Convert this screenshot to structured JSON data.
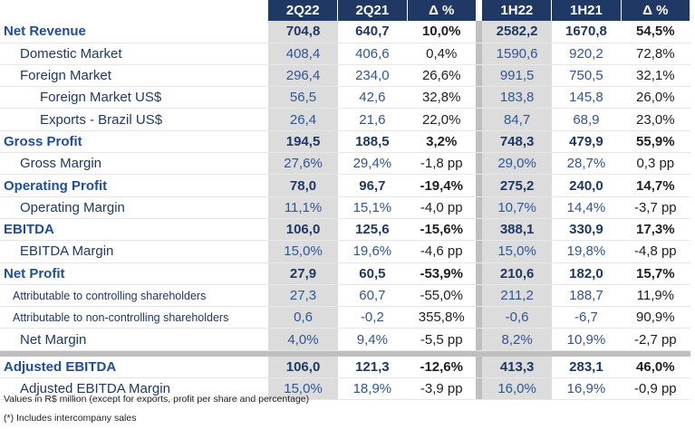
{
  "headers": {
    "c1": "2Q22",
    "c2": "2Q21",
    "c3": "Δ %",
    "c4": "1H22",
    "c5": "1H21",
    "c6": "Δ %"
  },
  "rows": [
    {
      "label": "Net Revenue",
      "v": [
        "704,8",
        "640,7",
        "10,0%",
        "2582,2",
        "1670,8",
        "54,5%"
      ]
    },
    {
      "label": "Domestic Market",
      "v": [
        "408,4",
        "406,6",
        "0,4%",
        "1590,6",
        "920,2",
        "72,8%"
      ]
    },
    {
      "label": "Foreign Market",
      "v": [
        "296,4",
        "234,0",
        "26,6%",
        "991,5",
        "750,5",
        "32,1%"
      ]
    },
    {
      "label": "Foreign Market US$",
      "v": [
        "56,5",
        "42,6",
        "32,8%",
        "183,8",
        "145,8",
        "26,0%"
      ]
    },
    {
      "label": "Exports - Brazil US$",
      "v": [
        "26,4",
        "21,6",
        "22,0%",
        "84,7",
        "68,9",
        "23,0%"
      ]
    },
    {
      "label": "Gross Profit",
      "v": [
        "194,5",
        "188,5",
        "3,2%",
        "748,3",
        "479,9",
        "55,9%"
      ]
    },
    {
      "label": "Gross Margin",
      "v": [
        "27,6%",
        "29,4%",
        "-1,8 pp",
        "29,0%",
        "28,7%",
        "0,3 pp"
      ]
    },
    {
      "label": "Operating Profit",
      "v": [
        "78,0",
        "96,7",
        "-19,4%",
        "275,2",
        "240,0",
        "14,7%"
      ]
    },
    {
      "label": "Operating Margin",
      "v": [
        "11,1%",
        "15,1%",
        "-4,0 pp",
        "10,7%",
        "14,4%",
        "-3,7 pp"
      ]
    },
    {
      "label": "EBITDA",
      "v": [
        "106,0",
        "125,6",
        "-15,6%",
        "388,1",
        "330,9",
        "17,3%"
      ]
    },
    {
      "label": "EBITDA Margin",
      "v": [
        "15,0%",
        "19,6%",
        "-4,6 pp",
        "15,0%",
        "19,8%",
        "-4,8 pp"
      ]
    },
    {
      "label": "Net Profit",
      "v": [
        "27,9",
        "60,5",
        "-53,9%",
        "210,6",
        "182,0",
        "15,7%"
      ]
    },
    {
      "label": "Attributable to controlling shareholders",
      "v": [
        "27,3",
        "60,7",
        "-55,0%",
        "211,2",
        "188,7",
        "11,9%"
      ]
    },
    {
      "label": "Attributable to non-controlling shareholders",
      "v": [
        "0,6",
        "-0,2",
        "355,8%",
        "-0,6",
        "-6,7",
        "90,9%"
      ]
    },
    {
      "label": "Net Margin",
      "v": [
        "4,0%",
        "9,4%",
        "-5,5 pp",
        "8,2%",
        "10,9%",
        "-2,7 pp"
      ]
    },
    {
      "label": "Adjusted EBITDA",
      "v": [
        "106,0",
        "121,3",
        "-12,6%",
        "413,3",
        "283,1",
        "46,0%"
      ]
    },
    {
      "label": "Adjusted EBITDA Margin",
      "v": [
        "15,0%",
        "18,9%",
        "-3,9 pp",
        "16,0%",
        "16,9%",
        "-0,9 pp"
      ]
    }
  ],
  "notes": {
    "units": "Values in R$ million  (except for exports,  profit per share and percentage)",
    "intercompany": "(*) Includes intercompany sales"
  }
}
